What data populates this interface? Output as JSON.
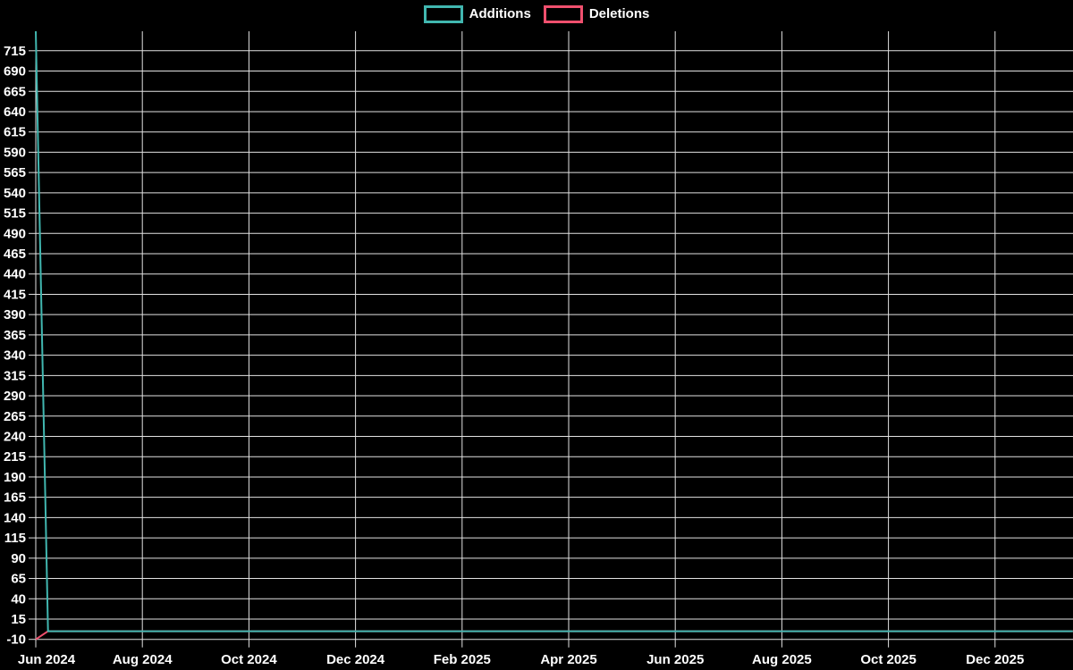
{
  "page": {
    "background_color": "#000000",
    "text_color": "#ffffff"
  },
  "chart_data": {
    "type": "line",
    "title": "",
    "xlabel": "",
    "ylabel": "",
    "grid": true,
    "grid_color": "#e2e2e2",
    "text_color": "#ffffff",
    "legend_position": "top",
    "x_axis": {
      "tick_labels": [
        "Jun 2024",
        "Aug 2024",
        "Oct 2024",
        "Dec 2024",
        "Feb 2025",
        "Apr 2025",
        "Jun 2025",
        "Aug 2025",
        "Oct 2025",
        "Dec 2025"
      ],
      "tick_month_offsets": [
        0,
        2,
        4,
        6,
        8,
        10,
        12,
        14,
        16,
        18
      ],
      "range_months": [
        0,
        19.46
      ]
    },
    "y_axis": {
      "tick_values": [
        715,
        690,
        665,
        640,
        615,
        590,
        565,
        540,
        515,
        490,
        465,
        440,
        415,
        390,
        365,
        340,
        315,
        290,
        265,
        240,
        215,
        190,
        165,
        140,
        115,
        90,
        65,
        40,
        15,
        -10
      ],
      "tick_step": 25,
      "range": [
        -10,
        739
      ]
    },
    "series": [
      {
        "name": "Additions",
        "color": "#41b7b0",
        "points_month_value": [
          [
            0,
            739
          ],
          [
            0.23,
            0
          ],
          [
            19.46,
            0
          ]
        ]
      },
      {
        "name": "Deletions",
        "color": "#f0506e",
        "points_month_value": [
          [
            0,
            -10
          ],
          [
            0.23,
            0
          ],
          [
            19.46,
            0
          ]
        ]
      }
    ]
  }
}
